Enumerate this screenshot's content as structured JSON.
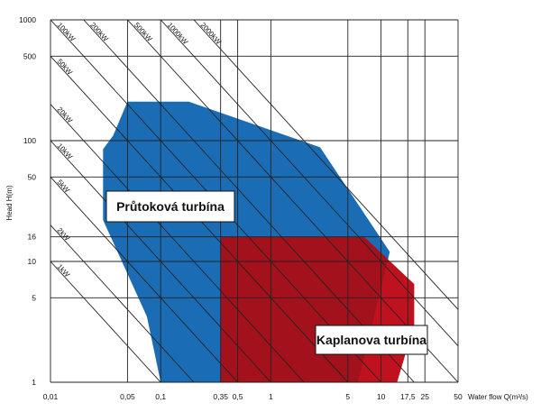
{
  "chart_data": {
    "type": "area",
    "title": "",
    "xlabel": "Water flow Q(m³/s)",
    "ylabel": "Head H(m)",
    "x_scale": "log",
    "y_scale": "log",
    "xlim": [
      0.01,
      50
    ],
    "ylim": [
      1,
      1000
    ],
    "x_ticks": [
      0.01,
      0.05,
      0.1,
      0.35,
      0.5,
      1,
      5,
      10,
      17.5,
      25,
      50
    ],
    "x_tick_labels": [
      "0,01",
      "0,05",
      "0,1",
      "0,35",
      "0,5",
      "1",
      "5",
      "10",
      "17,5",
      "25",
      "50"
    ],
    "y_ticks": [
      1,
      5,
      10,
      16,
      50,
      100,
      500,
      1000
    ],
    "y_tick_labels": [
      "1",
      "5",
      "10",
      "16",
      "50",
      "100",
      "500",
      "1000"
    ],
    "grid": true,
    "power_lines": [
      {
        "label": "1kW",
        "kw": 1
      },
      {
        "label": "2kW",
        "kw": 2
      },
      {
        "label": "5kW",
        "kw": 5
      },
      {
        "label": "10kW",
        "kw": 10
      },
      {
        "label": "20kW",
        "kw": 20
      },
      {
        "label": "50kW",
        "kw": 50
      },
      {
        "label": "100kW",
        "kw": 100
      },
      {
        "label": "200kW",
        "kw": 200
      },
      {
        "label": "500kW",
        "kw": 500
      },
      {
        "label": "1000kW",
        "kw": 1000
      },
      {
        "label": "2000kW",
        "kw": 2000
      }
    ],
    "regions": [
      {
        "name": "Průtoková turbína",
        "color": "#1a6db5",
        "points": [
          [
            0.1,
            1
          ],
          [
            0.075,
            3.5
          ],
          [
            0.03,
            22
          ],
          [
            0.03,
            85
          ],
          [
            0.037,
            110
          ],
          [
            0.05,
            210
          ],
          [
            0.18,
            210
          ],
          [
            2.8,
            88
          ],
          [
            12,
            12
          ],
          [
            6.2,
            1
          ]
        ]
      },
      {
        "name": "Kaplanova turbína",
        "color": "#c0121e",
        "overlap_color": "#a3121c",
        "points": [
          [
            0.35,
            1
          ],
          [
            0.35,
            16
          ],
          [
            7,
            16
          ],
          [
            20,
            6.5
          ],
          [
            20,
            3
          ],
          [
            14,
            1
          ]
        ]
      }
    ]
  }
}
